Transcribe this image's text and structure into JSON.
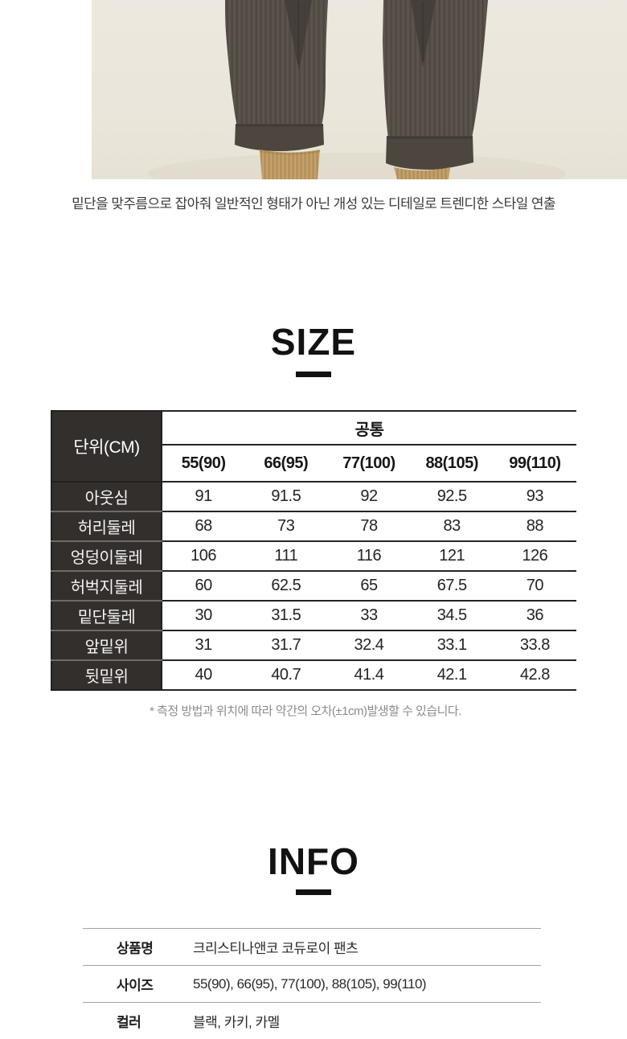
{
  "photo": {
    "description": "cropped product photo: two brown corduroy pant legs with pleated turn-up hems over camel socks",
    "background_color": "#eae6db",
    "pants_color": "#564f48",
    "cuff_color": "#4d463f",
    "sock_color": "#bd9a64"
  },
  "caption": "밑단을 맞주름으로 잡아줘 일반적인 형태가 아닌 개성 있는 디테일로 트렌디한 스타일 연출",
  "size_section": {
    "title": "SIZE",
    "table": {
      "unit_label": "단위(CM)",
      "group_header": "공통",
      "columns": [
        "55(90)",
        "66(95)",
        "77(100)",
        "88(105)",
        "99(110)"
      ],
      "rows": [
        {
          "label": "아웃심",
          "values": [
            "91",
            "91.5",
            "92",
            "92.5",
            "93"
          ]
        },
        {
          "label": "허리둘레",
          "values": [
            "68",
            "73",
            "78",
            "83",
            "88"
          ]
        },
        {
          "label": "엉덩이둘레",
          "values": [
            "106",
            "111",
            "116",
            "121",
            "126"
          ]
        },
        {
          "label": "허벅지둘레",
          "values": [
            "60",
            "62.5",
            "65",
            "67.5",
            "70"
          ]
        },
        {
          "label": "밑단둘레",
          "values": [
            "30",
            "31.5",
            "33",
            "34.5",
            "36"
          ]
        },
        {
          "label": "앞밑위",
          "values": [
            "31",
            "31.7",
            "32.4",
            "33.1",
            "33.8"
          ]
        },
        {
          "label": "뒷밑위",
          "values": [
            "40",
            "40.7",
            "41.4",
            "42.1",
            "42.8"
          ]
        }
      ]
    },
    "footnote": "* 측정 방법과 위치에 따라 약간의 오차(±1cm)발생할 수 있습니다."
  },
  "info_section": {
    "title": "INFO",
    "rows": [
      {
        "label": "상품명",
        "value": "크리스티나앤코 코듀로이 팬츠"
      },
      {
        "label": "사이즈",
        "value": "55(90), 66(95), 77(100), 88(105), 99(110)"
      },
      {
        "label": "컬러",
        "value": "블랙, 카키, 카멜"
      }
    ]
  },
  "colors": {
    "table_header_bg": "#332f2d",
    "table_border": "#262423",
    "info_divider": "#a3a3a3",
    "footnote_text": "#8b8b8b",
    "heading_text": "#121212"
  }
}
